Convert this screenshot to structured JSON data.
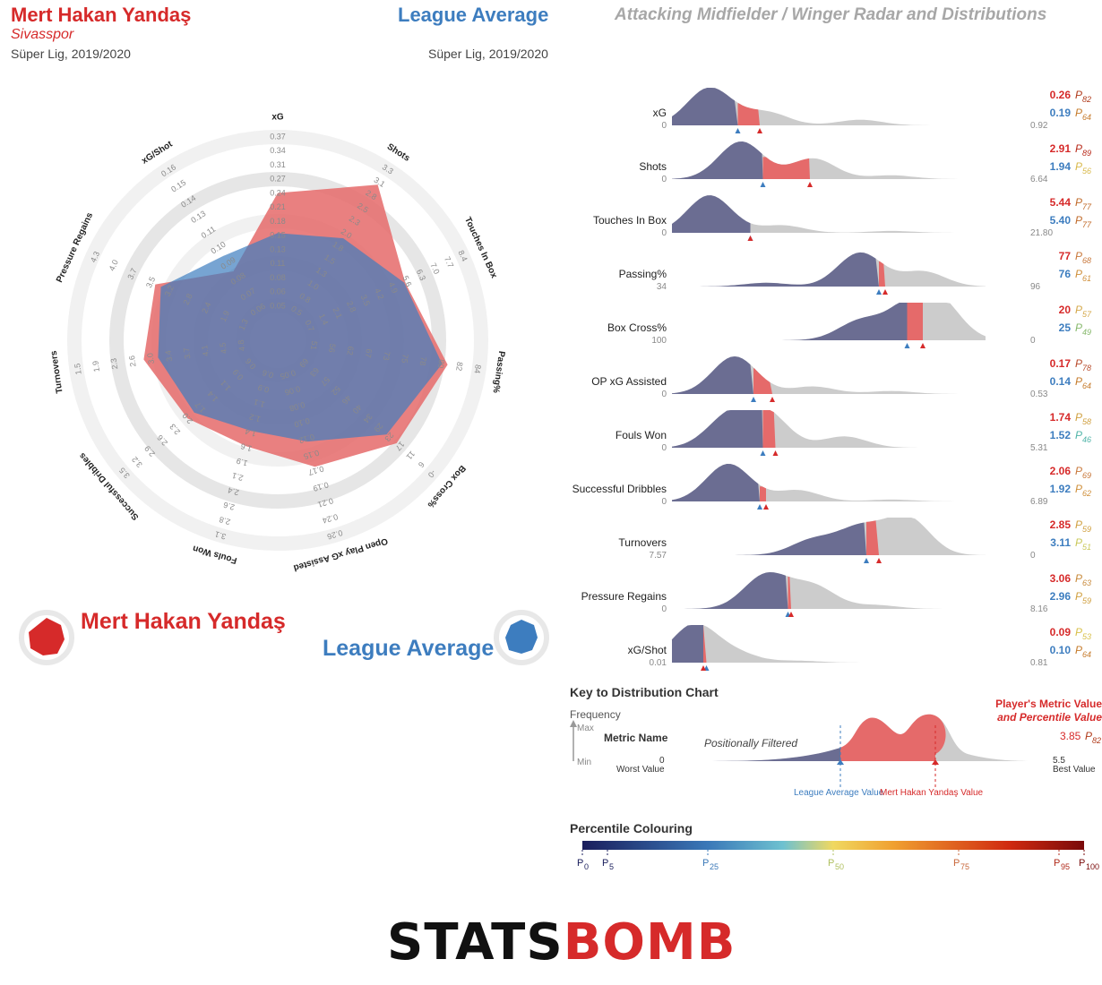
{
  "header": {
    "player_name": "Mert Hakan Yandaş",
    "team": "Sivasspor",
    "player_competition": "Süper Lig, 2019/2020",
    "average_name": "League Average",
    "average_competition": "Süper Lig, 2019/2020",
    "template_title": "Attacking Midfielder / Winger Radar and Distributions"
  },
  "legend": {
    "player_label": "Mert Hakan Yandaş",
    "average_label": "League Average"
  },
  "colors": {
    "player": "#e56a6a",
    "player_text": "#d62a2a",
    "average": "#3d7dbf",
    "dist_fill": "#6b6d92",
    "dist_rest": "#cccccc"
  },
  "chart_data": [
    {
      "type": "radar",
      "series": [
        {
          "name": "Mert Hakan Yandaş",
          "values": [
            0.26,
            2.91,
            5.44,
            77,
            20,
            0.17,
            1.74,
            2.06,
            2.85,
            3.06,
            0.09
          ]
        },
        {
          "name": "League Average",
          "values": [
            0.19,
            1.94,
            5.4,
            76,
            25,
            0.14,
            1.52,
            1.92,
            3.11,
            2.96,
            0.1
          ]
        }
      ],
      "axes": [
        {
          "label": "xG",
          "ticks": [
            "0.05",
            "0.06",
            "0.08",
            "0.11",
            "0.13",
            "0.15",
            "0.18",
            "0.21",
            "0.24",
            "0.27",
            "0.31",
            "0.34",
            "0.37"
          ]
        },
        {
          "label": "Shots",
          "ticks": [
            "0.5",
            "0.8",
            "1.0",
            "1.3",
            "1.5",
            "1.8",
            "2.0",
            "2.3",
            "2.5",
            "2.8",
            "3.1",
            "3.3"
          ]
        },
        {
          "label": "Touches In Box",
          "ticks": [
            "0.7",
            "1.4",
            "2.1",
            "2.8",
            "3.5",
            "4.2",
            "4.9",
            "5.6",
            "6.3",
            "7.0",
            "7.7",
            "8.4"
          ]
        },
        {
          "label": "Passing%",
          "ticks": [
            "51",
            "56",
            "62",
            "67",
            "73",
            "75",
            "78",
            "80",
            "82",
            "84"
          ]
        },
        {
          "label": "Box Cross%",
          "ticks": [
            "69",
            "63",
            "57",
            "52",
            "46",
            "40",
            "34",
            "29",
            "23",
            "17",
            "11",
            "6",
            "-0"
          ]
        },
        {
          "label": "Open Play xG Assisted",
          "ticks": [
            "0.05",
            "0.06",
            "0.08",
            "0.10",
            "0.12",
            "0.15",
            "0.17",
            "0.19",
            "0.21",
            "0.24",
            "0.26"
          ]
        },
        {
          "label": "Fouls Won",
          "ticks": [
            "0.6",
            "0.9",
            "1.1",
            "1.2",
            "1.4",
            "1.6",
            "1.9",
            "2.1",
            "2.4",
            "2.6",
            "2.8",
            "3.1"
          ]
        },
        {
          "label": "Successful Dribbles",
          "ticks": [
            "0.6",
            "0.9",
            "1.1",
            "1.4",
            "1.7",
            "2.0",
            "2.3",
            "2.6",
            "2.9",
            "3.2",
            "3.5"
          ]
        },
        {
          "label": "Turnovers",
          "ticks": [
            "4.8",
            "4.5",
            "4.1",
            "3.7",
            "3.4",
            "3.0",
            "2.6",
            "2.3",
            "1.9",
            "1.5"
          ]
        },
        {
          "label": "Pressure Regains",
          "ticks": [
            "1.3",
            "1.9",
            "2.4",
            "2.8",
            "3.2",
            "3.5",
            "3.7",
            "4.0",
            "4.3"
          ]
        },
        {
          "label": "xG/Shot",
          "ticks": [
            "0.06",
            "0.07",
            "0.08",
            "0.09",
            "0.10",
            "0.11",
            "0.13",
            "0.14",
            "0.15",
            "0.16"
          ]
        }
      ]
    },
    {
      "type": "area",
      "title": "distributions",
      "metrics": [
        {
          "label": "xG",
          "min": "0",
          "max": "0.92",
          "player": "0.26",
          "player_pct": "82",
          "avg": "0.19",
          "avg_pct": "64",
          "avg_pct_color": "#c57a2a",
          "player_pct_color": "#b03a1a",
          "pf": 0.28,
          "af": 0.21,
          "peaks": [
            [
              0.12,
              1.0
            ],
            [
              0.3,
              0.35
            ],
            [
              0.6,
              0.15
            ]
          ]
        },
        {
          "label": "Shots",
          "min": "0",
          "max": "6.64",
          "player": "2.91",
          "player_pct": "89",
          "avg": "1.94",
          "avg_pct": "56",
          "avg_pct_color": "#d8b84a",
          "player_pct_color": "#b82a1a",
          "pf": 0.44,
          "af": 0.29,
          "peaks": [
            [
              0.22,
              1.0
            ],
            [
              0.45,
              0.55
            ],
            [
              0.7,
              0.1
            ]
          ]
        },
        {
          "label": "Touches In Box",
          "min": "0",
          "max": "21.80",
          "player": "5.44",
          "player_pct": "77",
          "avg": "5.40",
          "avg_pct": "77",
          "avg_pct_color": "#c06a2a",
          "player_pct_color": "#c06a2a",
          "pf": 0.25,
          "af": 0.25,
          "peaks": [
            [
              0.12,
              1.0
            ],
            [
              0.35,
              0.2
            ],
            [
              0.7,
              0.05
            ]
          ]
        },
        {
          "label": "Passing%",
          "min": "34",
          "max": "96",
          "player": "77",
          "player_pct": "68",
          "avg": "76",
          "avg_pct": "61",
          "avg_pct_color": "#cf8f3a",
          "player_pct_color": "#c8773a",
          "pf": 0.68,
          "af": 0.66,
          "peaks": [
            [
              0.3,
              0.1
            ],
            [
              0.6,
              0.9
            ],
            [
              0.8,
              0.4
            ]
          ]
        },
        {
          "label": "Box Cross%",
          "min": "100",
          "max": "0",
          "player": "20",
          "player_pct": "57",
          "avg": "25",
          "avg_pct": "49",
          "avg_pct_color": "#86b86b",
          "player_pct_color": "#d4a84a",
          "pf": 0.8,
          "af": 0.75,
          "peaks": [
            [
              0.6,
              0.5
            ],
            [
              0.75,
              0.75
            ],
            [
              0.85,
              1.0
            ]
          ]
        },
        {
          "label": "OP xG Assisted",
          "min": "0",
          "max": "0.53",
          "player": "0.17",
          "player_pct": "78",
          "avg": "0.14",
          "avg_pct": "64",
          "avg_pct_color": "#c57a2a",
          "player_pct_color": "#b84a2a",
          "pf": 0.32,
          "af": 0.26,
          "peaks": [
            [
              0.2,
              1.0
            ],
            [
              0.45,
              0.2
            ],
            [
              0.7,
              0.08
            ]
          ]
        },
        {
          "label": "Fouls Won",
          "min": "0",
          "max": "5.31",
          "player": "1.74",
          "player_pct": "58",
          "avg": "1.52",
          "avg_pct": "46",
          "avg_pct_color": "#4fb4a8",
          "player_pct_color": "#d0a040",
          "pf": 0.33,
          "af": 0.29,
          "peaks": [
            [
              0.18,
              0.8
            ],
            [
              0.3,
              0.9
            ],
            [
              0.55,
              0.3
            ]
          ]
        },
        {
          "label": "Successful Dribbles",
          "min": "0",
          "max": "6.89",
          "player": "2.06",
          "player_pct": "69",
          "avg": "1.92",
          "avg_pct": "62",
          "avg_pct_color": "#cf8f3a",
          "player_pct_color": "#c8773a",
          "pf": 0.3,
          "af": 0.28,
          "peaks": [
            [
              0.18,
              1.0
            ],
            [
              0.4,
              0.3
            ],
            [
              0.7,
              0.05
            ]
          ]
        },
        {
          "label": "Turnovers",
          "min": "7.57",
          "max": "0",
          "player": "2.85",
          "player_pct": "59",
          "avg": "3.11",
          "avg_pct": "51",
          "avg_pct_color": "#c9c85a",
          "player_pct_color": "#d0a040",
          "pf": 0.66,
          "af": 0.62,
          "peaks": [
            [
              0.45,
              0.4
            ],
            [
              0.6,
              0.7
            ],
            [
              0.75,
              1.0
            ]
          ]
        },
        {
          "label": "Pressure Regains",
          "min": "0",
          "max": "8.16",
          "player": "3.06",
          "player_pct": "63",
          "avg": "2.96",
          "avg_pct": "59",
          "avg_pct_color": "#d0a040",
          "player_pct_color": "#c8893a",
          "pf": 0.38,
          "af": 0.37,
          "peaks": [
            [
              0.3,
              0.9
            ],
            [
              0.45,
              0.6
            ],
            [
              0.65,
              0.1
            ]
          ]
        },
        {
          "label": "xG/Shot",
          "min": "0.01",
          "max": "0.81",
          "player": "0.09",
          "player_pct": "53",
          "avg": "0.10",
          "avg_pct": "64",
          "avg_pct_color": "#c57a2a",
          "player_pct_color": "#d8c04a",
          "pf": 0.1,
          "af": 0.11,
          "peaks": [
            [
              0.07,
              1.0
            ],
            [
              0.2,
              0.25
            ],
            [
              0.4,
              0.05
            ]
          ]
        }
      ]
    }
  ],
  "key": {
    "title": "Key to Distribution Chart",
    "frequency": "Frequency",
    "max": "Max",
    "min": "Min",
    "metric_name": "Metric Name",
    "positional": "Positionally Filtered",
    "worst_value_num": "0",
    "worst_value": "Worst Value",
    "best_value_num": "5.5",
    "best_value": "Best Value",
    "player_metric_value_1": "Player's Metric Value",
    "player_metric_value_2": "and Percentile Value",
    "example_value": "3.85",
    "example_pct": "82",
    "league_avg_value": "League Average Value",
    "player_value": "Mert Hakan Yandaş Value"
  },
  "percentile": {
    "title": "Percentile Colouring",
    "labels": [
      "0",
      "5",
      "25",
      "50",
      "75",
      "95",
      "100"
    ]
  },
  "logo": {
    "part1": "STATS",
    "part2": "BOMB"
  }
}
